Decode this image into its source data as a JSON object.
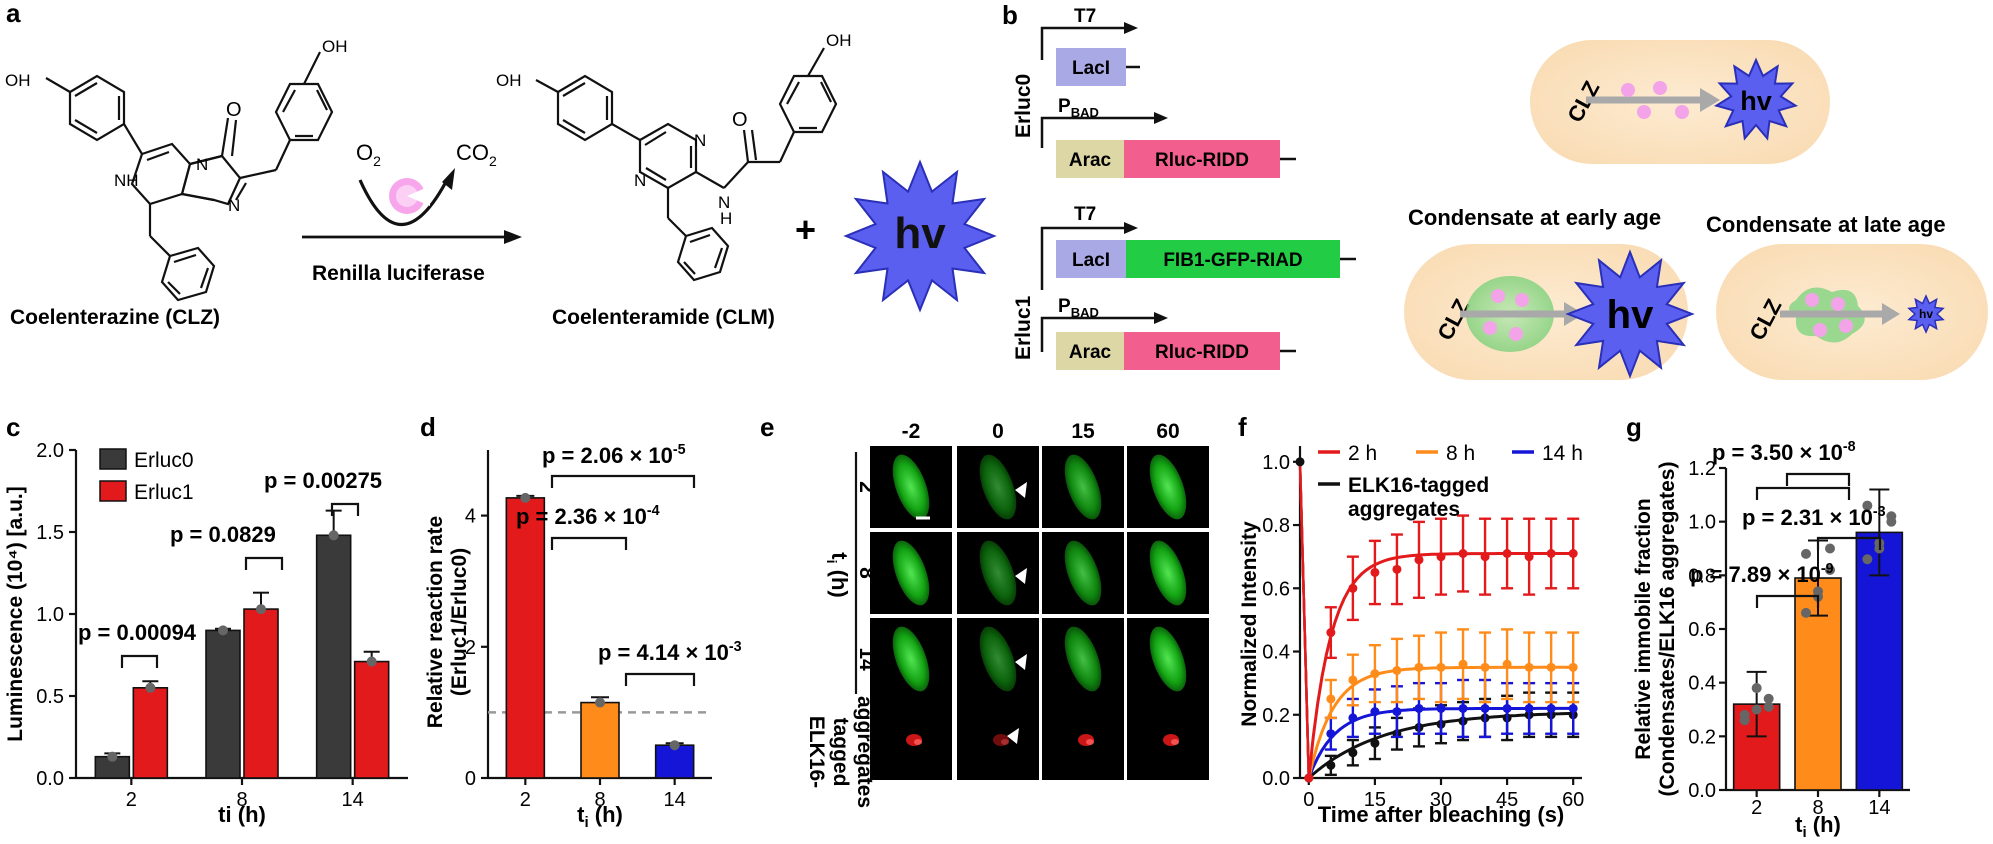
{
  "panels": {
    "a": {
      "letter": "a",
      "reactant": "Coelenterazine (CLZ)",
      "product": "Coelenteramide (CLM)",
      "enzyme": "Renilla luciferase",
      "o2": "O",
      "o2_sub": "2",
      "co2": "CO",
      "co2_sub": "2",
      "plus": "+",
      "hv": "hv",
      "oh": "OH",
      "nh": "NH",
      "n": "N",
      "o": "O",
      "h": "H"
    },
    "b": {
      "letter": "b",
      "strain0": "Erluc0",
      "strain1": "Erluc1",
      "t7": "T7",
      "pbad": "P",
      "pbad_sub": "BAD",
      "lacl": "LacI",
      "arac": "Arac",
      "rluc_ridd": "Rluc-RIDD",
      "fib1": "FIB1-GFP-RIAD",
      "clz": "CLZ",
      "hv": "hv",
      "early": "Condensate at early age",
      "late": "Condensate at late age"
    },
    "c": {
      "letter": "c"
    },
    "d": {
      "letter": "d"
    },
    "e": {
      "letter": "e",
      "times": [
        "-2",
        "0",
        "15",
        "60"
      ],
      "rows": [
        "2",
        "8",
        "14"
      ],
      "row_axis": "t",
      "row_axis_sub": "i",
      "row_axis_unit": " (h)",
      "bottom_label": [
        "ELK16-",
        "tagged",
        "aggregates"
      ]
    },
    "f": {
      "letter": "f"
    },
    "g": {
      "letter": "g"
    }
  },
  "chart_data": [
    {
      "type": "bar",
      "panel": "c",
      "categories": [
        "2",
        "8",
        "14"
      ],
      "series": [
        {
          "name": "Erluc0",
          "values": [
            0.13,
            0.9,
            1.48
          ],
          "errors": [
            0.02,
            0.01,
            0.15
          ],
          "color": "#3a3a3a"
        },
        {
          "name": "Erluc1",
          "values": [
            0.55,
            1.03,
            0.71
          ],
          "errors": [
            0.04,
            0.1,
            0.06
          ],
          "color": "#e31a1c"
        }
      ],
      "ylabel": "Luminescence (10⁴) [a.u.]",
      "xlabel_main": "ti",
      "xlabel_unit": " (h)",
      "ylim": [
        0,
        2.0
      ],
      "yticks": [
        "0.0",
        "0.5",
        "1.0",
        "1.5",
        "2.0"
      ],
      "legend_placement": "top-left",
      "annotations": [
        "p = 0.00094",
        "p = 0.0829",
        "p = 0.00275"
      ]
    },
    {
      "type": "bar",
      "panel": "d",
      "categories": [
        "2",
        "8",
        "14"
      ],
      "values": [
        4.27,
        1.15,
        0.5
      ],
      "errors": [
        0.03,
        0.08,
        0.03
      ],
      "colors": [
        "#e31a1c",
        "#ff8c1a",
        "#1515d8"
      ],
      "ylabel_line1": "Relative reaction rate",
      "ylabel_line2": "(Erluc1/Erluc0)",
      "xlabel_main": "t",
      "xlabel_sub": "i",
      "xlabel_unit": " (h)",
      "ylim": [
        0,
        5
      ],
      "yticks": [
        "0",
        "2",
        "4"
      ],
      "reference_line": 1,
      "annotations": [
        {
          "base": "p = 2.06 × 10",
          "exp": "-5"
        },
        {
          "base": "p = 2.36 × 10",
          "exp": "-4"
        },
        {
          "base": "p = 4.14 × 10",
          "exp": "-3"
        }
      ]
    },
    {
      "type": "line",
      "panel": "f",
      "x": [
        0,
        5,
        10,
        15,
        20,
        25,
        30,
        35,
        40,
        45,
        50,
        55,
        60
      ],
      "series": [
        {
          "name": "2 h",
          "color": "#e31a1c",
          "values": [
            0,
            0.46,
            0.6,
            0.65,
            0.66,
            0.69,
            0.7,
            0.71,
            0.7,
            0.71,
            0.7,
            0.71,
            0.71
          ],
          "errors": [
            0,
            0.08,
            0.1,
            0.1,
            0.11,
            0.12,
            0.12,
            0.12,
            0.12,
            0.11,
            0.12,
            0.11,
            0.11
          ],
          "fit_plateau": 0.71,
          "fit_rate": 0.2
        },
        {
          "name": "8 h",
          "color": "#ff8c1a",
          "values": [
            0,
            0.25,
            0.31,
            0.33,
            0.34,
            0.35,
            0.35,
            0.36,
            0.35,
            0.36,
            0.35,
            0.35,
            0.35
          ],
          "errors": [
            0,
            0.06,
            0.08,
            0.09,
            0.1,
            0.1,
            0.11,
            0.11,
            0.11,
            0.11,
            0.11,
            0.11,
            0.11
          ],
          "fit_plateau": 0.35,
          "fit_rate": 0.18
        },
        {
          "name": "14 h",
          "color": "#1515d8",
          "values": [
            0,
            0.14,
            0.19,
            0.21,
            0.21,
            0.22,
            0.22,
            0.22,
            0.22,
            0.22,
            0.22,
            0.22,
            0.22
          ],
          "errors": [
            0,
            0.05,
            0.06,
            0.07,
            0.08,
            0.08,
            0.08,
            0.09,
            0.09,
            0.08,
            0.08,
            0.08,
            0.08
          ],
          "fit_plateau": 0.22,
          "fit_rate": 0.17
        },
        {
          "name": "ELK16-tagged aggregates",
          "legend_lines": [
            "ELK16-tagged",
            "aggregates"
          ],
          "color": "#111111",
          "values": [
            0,
            0.04,
            0.08,
            0.11,
            0.14,
            0.16,
            0.17,
            0.18,
            0.19,
            0.19,
            0.2,
            0.2,
            0.2
          ],
          "errors": [
            0,
            0.03,
            0.04,
            0.05,
            0.05,
            0.06,
            0.06,
            0.06,
            0.06,
            0.07,
            0.07,
            0.07,
            0.07
          ],
          "fit_plateau": 0.21,
          "fit_rate": 0.06
        }
      ],
      "initial_point": {
        "x": -2,
        "y": 1.0
      },
      "xlabel": "Time after bleaching (s)",
      "ylabel": "Normalized Intensity",
      "xlim": [
        -2,
        62
      ],
      "ylim": [
        0,
        1.05
      ],
      "xticks": [
        "0",
        "15",
        "30",
        "45",
        "60"
      ],
      "yticks": [
        "0.0",
        "0.2",
        "0.4",
        "0.6",
        "0.8",
        "1.0"
      ],
      "legend_placement": "top"
    },
    {
      "type": "bar",
      "panel": "g",
      "categories": [
        "2",
        "8",
        "14"
      ],
      "values": [
        0.32,
        0.79,
        0.96
      ],
      "errors": [
        0.12,
        0.14,
        0.16
      ],
      "colors": [
        "#e31a1c",
        "#ff8c1a",
        "#1515d8"
      ],
      "points": [
        [
          0.26,
          0.3,
          0.34,
          0.28,
          0.38,
          0.31
        ],
        [
          0.66,
          0.74,
          0.82,
          0.88,
          0.72,
          0.9
        ],
        [
          0.86,
          0.92,
          1.0,
          1.06,
          0.9,
          1.02
        ]
      ],
      "ylabel_line1": "Relative immobile fraction",
      "ylabel_line2": "(Condensates/ELK16 aggregates)",
      "xlabel_main": "t",
      "xlabel_sub": "i",
      "xlabel_unit": " (h)",
      "ylim": [
        0,
        1.2
      ],
      "yticks": [
        "0.0",
        "0.2",
        "0.4",
        "0.6",
        "0.8",
        "1.0",
        "1.2"
      ],
      "annotations": [
        {
          "base": "p = 3.50 × 10",
          "exp": "-8"
        },
        {
          "base": "p = 2.31 × 10",
          "exp": "-3"
        },
        {
          "base": "p = 7.89 × 10",
          "exp": "-9"
        }
      ]
    }
  ]
}
